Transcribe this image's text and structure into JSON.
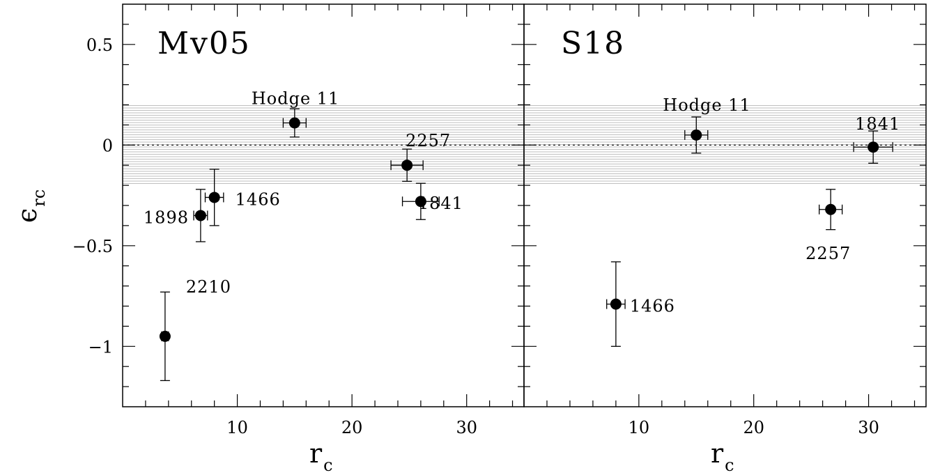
{
  "chart_data": [
    {
      "type": "scatter",
      "title": "Mv05",
      "xlabel": "r_c",
      "ylabel": "ε_rc",
      "xlim": [
        0,
        35
      ],
      "ylim": [
        -1.3,
        0.7
      ],
      "xticks": [
        10,
        20,
        30
      ],
      "yticks": [
        0.5,
        0,
        -0.5,
        -1
      ],
      "ytick_labels": [
        "0.5",
        "0",
        "−0.5",
        "−1"
      ],
      "band": [
        -0.2,
        0.2
      ],
      "reference_line": 0,
      "points": [
        {
          "label": "Hodge 11",
          "x": 15.0,
          "y": 0.11,
          "xerr": 1.0,
          "yerr": 0.07
        },
        {
          "label": "2257",
          "x": 24.8,
          "y": -0.1,
          "xerr": 1.4,
          "yerr": 0.08
        },
        {
          "label": "1466",
          "x": 8.0,
          "y": -0.26,
          "xerr": 0.8,
          "yerr": 0.14
        },
        {
          "label": "1898",
          "x": 6.8,
          "y": -0.35,
          "xerr": 0.6,
          "yerr": 0.13
        },
        {
          "label": "1841",
          "x": 26.0,
          "y": -0.28,
          "xerr": 1.6,
          "yerr": 0.09
        },
        {
          "label": "2210",
          "x": 3.7,
          "y": -0.95,
          "xerr": 0.3,
          "yerr": 0.22
        }
      ]
    },
    {
      "type": "scatter",
      "title": "S18",
      "xlabel": "r_c",
      "ylabel": "",
      "xlim": [
        0,
        35
      ],
      "ylim": [
        -1.3,
        0.7
      ],
      "xticks": [
        10,
        20,
        30
      ],
      "yticks": [
        0.5,
        0,
        -0.5,
        -1
      ],
      "band": [
        -0.2,
        0.2
      ],
      "reference_line": 0,
      "points": [
        {
          "label": "Hodge 11",
          "x": 15.0,
          "y": 0.05,
          "xerr": 1.0,
          "yerr": 0.09
        },
        {
          "label": "1841",
          "x": 30.4,
          "y": -0.01,
          "xerr": 1.7,
          "yerr": 0.08
        },
        {
          "label": "2257",
          "x": 26.7,
          "y": -0.32,
          "xerr": 1.0,
          "yerr": 0.1
        },
        {
          "label": "1466",
          "x": 8.0,
          "y": -0.79,
          "xerr": 0.8,
          "yerr": 0.21
        }
      ]
    }
  ],
  "axis_labels": {
    "x_main": "r",
    "x_sub": "c",
    "y_main": "ϵ",
    "y_sub": "rc"
  },
  "colors": {
    "band": "#c8c8c8",
    "marker": "#000000",
    "axes": "#000000"
  }
}
